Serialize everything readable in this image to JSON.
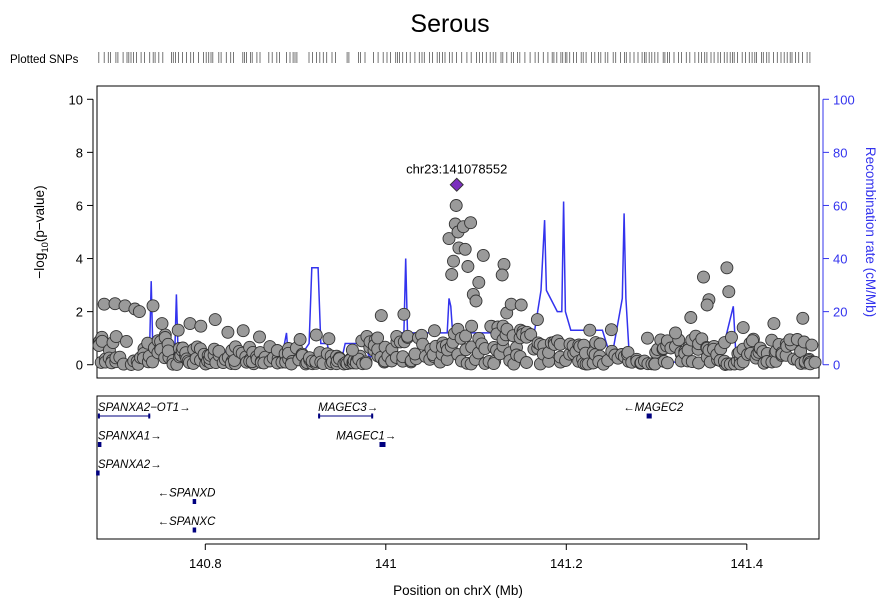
{
  "chart_data": {
    "type": "scatter",
    "title": "Serous",
    "plotted_snps_label": "Plotted SNPs",
    "xlabel": "Position on chrX (Mb)",
    "ylabel_left_prefix": "−log",
    "ylabel_left_sub": "10",
    "ylabel_left_suffix": "(p−value)",
    "ylabel_right": "Recombination rate (cM/Mb)",
    "xlim": [
      140.68,
      141.48
    ],
    "ylim": [
      -0.5,
      10.5
    ],
    "ylim_right": [
      -5,
      105
    ],
    "x_ticks": [
      "140.8",
      "141",
      "141.2",
      "141.4"
    ],
    "y_ticks": [
      "0",
      "2",
      "4",
      "6",
      "8",
      "10"
    ],
    "y2_ticks": [
      "0",
      "20",
      "40",
      "60",
      "80",
      "100"
    ],
    "lead_snp": {
      "label": "chr23:141078552",
      "x": 141.0786,
      "y": 6.78,
      "color": "#7B2FBE"
    },
    "colors": {
      "points": "#9a9a9a",
      "recomb": "#3333ee",
      "genes": "#00007f"
    },
    "highlight_points": [
      [
        141.07,
        4.75
      ],
      [
        141.073,
        3.4
      ],
      [
        141.075,
        3.9
      ],
      [
        141.077,
        5.3
      ],
      [
        141.078,
        6.0
      ],
      [
        141.08,
        5.0
      ],
      [
        141.081,
        4.4
      ],
      [
        141.086,
        5.2
      ],
      [
        141.088,
        4.35
      ],
      [
        141.091,
        3.7
      ],
      [
        141.094,
        5.35
      ],
      [
        141.097,
        2.65
      ],
      [
        141.1,
        2.4
      ],
      [
        141.103,
        3.1
      ],
      [
        141.108,
        4.12
      ],
      [
        141.131,
        3.78
      ],
      [
        141.129,
        3.38
      ],
      [
        141.134,
        1.95
      ],
      [
        141.139,
        2.28
      ],
      [
        141.15,
        2.25
      ],
      [
        141.352,
        3.3
      ],
      [
        141.378,
        3.65
      ],
      [
        141.38,
        2.75
      ],
      [
        141.358,
        2.45
      ],
      [
        141.356,
        2.25
      ],
      [
        140.688,
        2.28
      ],
      [
        140.7,
        2.3
      ],
      [
        140.711,
        2.22
      ],
      [
        140.722,
        2.1
      ],
      [
        140.727,
        2.0
      ],
      [
        140.742,
        2.22
      ],
      [
        140.752,
        1.55
      ],
      [
        140.77,
        1.3
      ],
      [
        140.783,
        1.55
      ],
      [
        140.795,
        1.45
      ],
      [
        140.811,
        1.7
      ],
      [
        140.825,
        1.22
      ],
      [
        140.842,
        1.28
      ],
      [
        140.86,
        1.05
      ],
      [
        140.905,
        0.95
      ],
      [
        140.923,
        1.12
      ],
      [
        140.937,
        0.98
      ],
      [
        140.963,
        0.55
      ],
      [
        140.995,
        1.85
      ],
      [
        141.02,
        1.9
      ],
      [
        141.054,
        1.28
      ],
      [
        141.168,
        1.7
      ],
      [
        141.226,
        1.3
      ],
      [
        141.25,
        1.32
      ],
      [
        141.29,
        1.0
      ],
      [
        141.321,
        1.2
      ],
      [
        141.338,
        1.78
      ],
      [
        141.396,
        1.4
      ],
      [
        141.43,
        1.55
      ],
      [
        141.462,
        1.75
      ]
    ],
    "recombination": [
      [
        140.68,
        0.8
      ],
      [
        140.73,
        1.0
      ],
      [
        140.738,
        1.5
      ],
      [
        140.74,
        31.5
      ],
      [
        140.742,
        3.0
      ],
      [
        140.76,
        1.5
      ],
      [
        140.766,
        2.0
      ],
      [
        140.768,
        26.5
      ],
      [
        140.77,
        3.0
      ],
      [
        140.79,
        3.0
      ],
      [
        140.8,
        5.0
      ],
      [
        140.88,
        5.0
      ],
      [
        140.885,
        3.0
      ],
      [
        140.89,
        12.0
      ],
      [
        140.892,
        3.0
      ],
      [
        140.905,
        3.0
      ],
      [
        140.915,
        8.0
      ],
      [
        140.918,
        36.5
      ],
      [
        140.925,
        36.5
      ],
      [
        140.928,
        8.0
      ],
      [
        140.935,
        8.0
      ],
      [
        140.94,
        0.5
      ],
      [
        140.95,
        0.5
      ],
      [
        140.955,
        8.0
      ],
      [
        140.975,
        8.0
      ],
      [
        140.982,
        3.0
      ],
      [
        141.0,
        3.0
      ],
      [
        141.015,
        12.0
      ],
      [
        141.02,
        12.0
      ],
      [
        141.022,
        40.0
      ],
      [
        141.024,
        12.0
      ],
      [
        141.068,
        12.0
      ],
      [
        141.07,
        25.0
      ],
      [
        141.072,
        22.0
      ],
      [
        141.074,
        12.0
      ],
      [
        141.12,
        12.0
      ],
      [
        141.135,
        12.0
      ],
      [
        141.165,
        13.0
      ],
      [
        141.172,
        28.0
      ],
      [
        141.176,
        54.5
      ],
      [
        141.178,
        28.0
      ],
      [
        141.19,
        20.0
      ],
      [
        141.195,
        20.0
      ],
      [
        141.197,
        61.5
      ],
      [
        141.199,
        20.0
      ],
      [
        141.205,
        13.0
      ],
      [
        141.24,
        13.0
      ],
      [
        141.25,
        2.0
      ],
      [
        141.262,
        25.0
      ],
      [
        141.264,
        57.0
      ],
      [
        141.266,
        25.0
      ],
      [
        141.27,
        2.0
      ],
      [
        141.3,
        1.0
      ],
      [
        141.37,
        1.0
      ],
      [
        141.385,
        22.0
      ],
      [
        141.388,
        3.0
      ],
      [
        141.42,
        2.0
      ],
      [
        141.48,
        1.0
      ]
    ],
    "genes": [
      {
        "name": "SPANXA2−OT1",
        "dir": "→",
        "row": 0,
        "start": 140.681,
        "end": 140.739,
        "label_x": 140.681,
        "anchor": "start"
      },
      {
        "name": "MAGEC3",
        "dir": "→",
        "row": 0,
        "start": 140.925,
        "end": 140.986,
        "label_x": 140.925,
        "anchor": "start"
      },
      {
        "name": "MAGEC2",
        "dir": "←",
        "row": 0,
        "start": 141.289,
        "end": 141.293,
        "label_x": 141.263,
        "anchor": "start"
      },
      {
        "name": "SPANXA1",
        "dir": "→",
        "row": 1,
        "start": 140.681,
        "end": 140.683,
        "label_x": 140.681,
        "anchor": "start"
      },
      {
        "name": "MAGEC1",
        "dir": "→",
        "row": 1,
        "start": 140.993,
        "end": 140.998,
        "label_x": 140.945,
        "anchor": "start"
      },
      {
        "name": "SPANXA2",
        "dir": "→",
        "row": 2,
        "start": 140.679,
        "end": 140.681,
        "label_x": 140.681,
        "anchor": "start"
      },
      {
        "name": "SPANXD",
        "dir": "←",
        "row": 3,
        "start": 140.786,
        "end": 140.788,
        "label_x": 140.747,
        "anchor": "start"
      },
      {
        "name": "SPANXC",
        "dir": "←",
        "row": 4,
        "start": 140.786,
        "end": 140.788,
        "label_x": 140.747,
        "anchor": "start"
      }
    ],
    "grid": false,
    "legend": "none"
  }
}
